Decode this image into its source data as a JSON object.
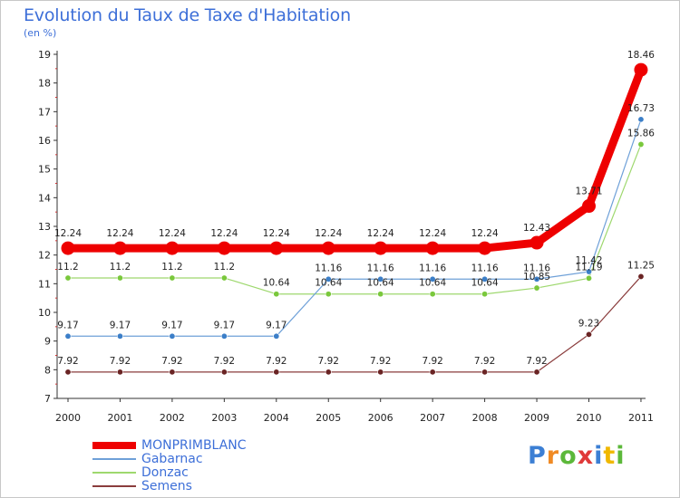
{
  "title": "Evolution du Taux de Taxe d'Habitation",
  "subtitle": "(en %)",
  "logo": {
    "letters": [
      "P",
      "r",
      "o",
      "x",
      "i",
      "t",
      "i"
    ],
    "colors": [
      "#3c7fd4",
      "#f08a24",
      "#5cb83a",
      "#e03a3a",
      "#3c7fd4",
      "#f0b800",
      "#5cb83a"
    ]
  },
  "chart_data": {
    "type": "line",
    "x": [
      "2000",
      "2001",
      "2002",
      "2003",
      "2004",
      "2005",
      "2006",
      "2007",
      "2008",
      "2009",
      "2010",
      "2011"
    ],
    "ylim": [
      7,
      19
    ],
    "yticks": [
      "7",
      "8",
      "9",
      "10",
      "11",
      "12",
      "13",
      "14",
      "15",
      "16",
      "17",
      "18",
      "19"
    ],
    "grid": false,
    "legend": "bottom-left",
    "series": [
      {
        "name": "MONPRIMBLANC",
        "color": "#ee0000",
        "values": [
          12.24,
          12.24,
          12.24,
          12.24,
          12.24,
          12.24,
          12.24,
          12.24,
          12.24,
          12.43,
          13.71,
          18.46
        ],
        "labels": [
          "12.24",
          "12.24",
          "12.24",
          "12.24",
          "12.24",
          "12.24",
          "12.24",
          "12.24",
          "12.24",
          "12.43",
          "13.71",
          "18.46"
        ]
      },
      {
        "name": "Gabarnac",
        "color": "#6ea0d8",
        "values": [
          9.17,
          9.17,
          9.17,
          9.17,
          9.17,
          11.16,
          11.16,
          11.16,
          11.16,
          11.16,
          11.42,
          16.73
        ],
        "labels": [
          "9.17",
          "9.17",
          "9.17",
          "9.17",
          "9.17",
          "11.16",
          "11.16",
          "11.16",
          "11.16",
          "11.16",
          "11.42",
          "16.73"
        ]
      },
      {
        "name": "Donzac",
        "color": "#9ed86e",
        "values": [
          11.2,
          11.2,
          11.2,
          11.2,
          10.64,
          10.64,
          10.64,
          10.64,
          10.64,
          10.85,
          11.19,
          15.86
        ],
        "labels": [
          "11.2",
          "11.2",
          "11.2",
          "11.2",
          "10.64",
          "10.64",
          "10.64",
          "10.64",
          "10.64",
          "10.85",
          "11.19",
          "15.86"
        ]
      },
      {
        "name": "Semens",
        "color": "#8a3c3c",
        "values": [
          7.92,
          7.92,
          7.92,
          7.92,
          7.92,
          7.92,
          7.92,
          7.92,
          7.92,
          7.92,
          9.23,
          11.25
        ],
        "labels": [
          "7.92",
          "7.92",
          "7.92",
          "7.92",
          "7.92",
          "7.92",
          "7.92",
          "7.92",
          "7.92",
          "7.92",
          "9.23",
          "11.25"
        ]
      }
    ]
  }
}
